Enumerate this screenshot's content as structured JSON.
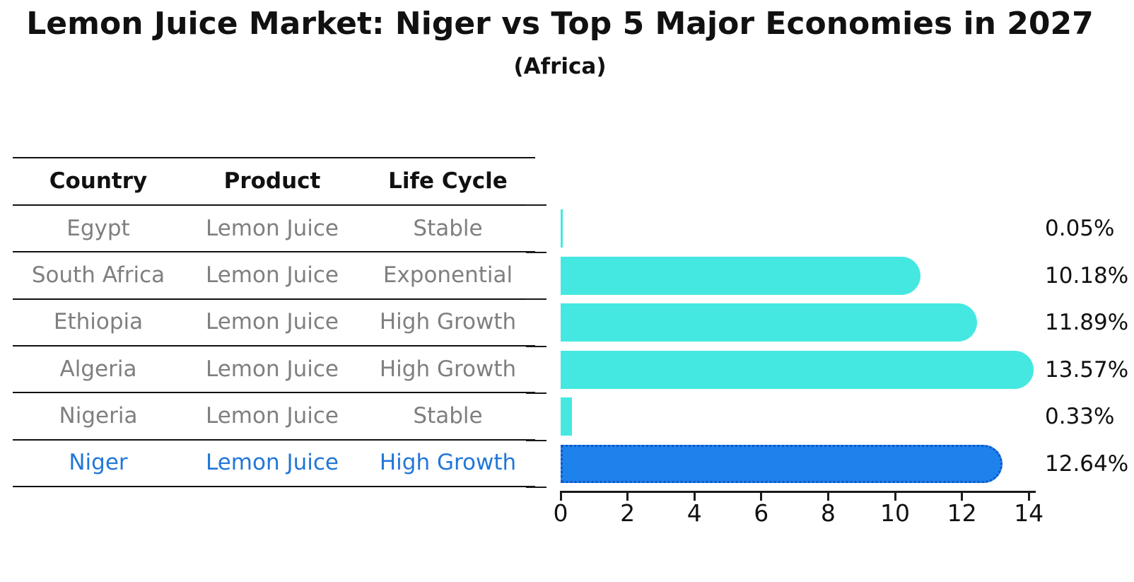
{
  "title": "Lemon Juice Market: Niger vs Top 5 Major Economies in 2027",
  "subtitle": "(Africa)",
  "table": {
    "headers": [
      "Country",
      "Product",
      "Life Cycle"
    ],
    "rows": [
      {
        "country": "Egypt",
        "product": "Lemon Juice",
        "life_cycle": "Stable",
        "highlight": false
      },
      {
        "country": "South Africa",
        "product": "Lemon Juice",
        "life_cycle": "Exponential",
        "highlight": false
      },
      {
        "country": "Ethiopia",
        "product": "Lemon Juice",
        "life_cycle": "High Growth",
        "highlight": false
      },
      {
        "country": "Algeria",
        "product": "Lemon Juice",
        "life_cycle": "High Growth",
        "highlight": false
      },
      {
        "country": "Nigeria",
        "product": "Lemon Juice",
        "life_cycle": "Stable",
        "highlight": false
      },
      {
        "country": "Niger",
        "product": "Lemon Juice",
        "life_cycle": "High Growth",
        "highlight": true
      }
    ]
  },
  "chart_data": {
    "type": "bar",
    "orientation": "horizontal",
    "title": "Lemon Juice Market: Niger vs Top 5 Major Economies in 2027",
    "subtitle": "(Africa)",
    "categories": [
      "Egypt",
      "South Africa",
      "Ethiopia",
      "Algeria",
      "Nigeria",
      "Niger"
    ],
    "values": [
      0.05,
      10.18,
      11.89,
      13.57,
      0.33,
      12.64
    ],
    "value_labels": [
      "0.05%",
      "10.18%",
      "11.89%",
      "13.57%",
      "0.33%",
      "12.64%"
    ],
    "unit": "%",
    "highlight_index": 5,
    "xlabel": "",
    "ylabel": "",
    "xlim": [
      0,
      14.2
    ],
    "x_ticks": [
      0,
      2,
      4,
      6,
      8,
      10,
      12,
      14
    ],
    "grid": false,
    "legend": false
  },
  "colors": {
    "bar": "#45e8e1",
    "highlight_bar": "#1e82ec",
    "highlight_bar_dots": "#0d57c9",
    "highlight_text": "#2277d8",
    "table_text": "#7f7f7f",
    "ink": "#111111",
    "background": "#ffffff"
  }
}
